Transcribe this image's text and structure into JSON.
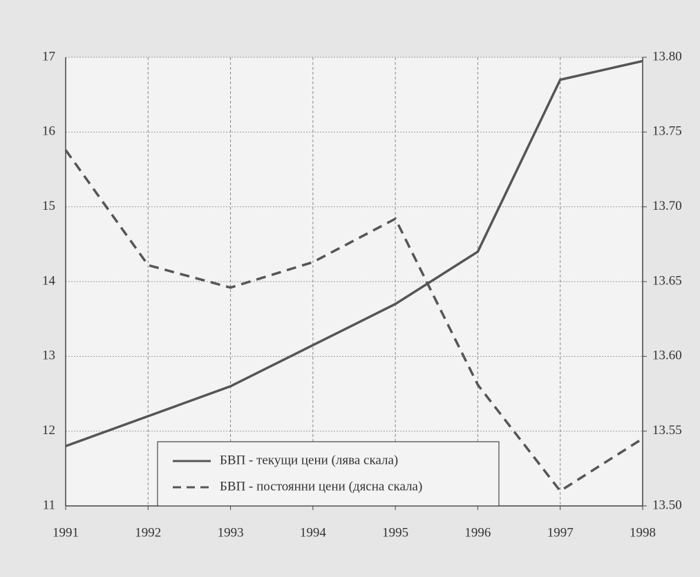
{
  "chart_data": {
    "type": "line",
    "categories": [
      "1991",
      "1992",
      "1993",
      "1994",
      "1995",
      "1996",
      "1997",
      "1998"
    ],
    "series": [
      {
        "name": "БВП - текущи цени (лява скала)",
        "color": "#555555",
        "dash": false,
        "values": [
          11.8,
          12.2,
          12.6,
          13.15,
          13.7,
          14.4,
          16.7,
          16.95
        ]
      },
      {
        "name": "БВП - постоянни цени (дясна скала)",
        "color": "#555555",
        "dash": true,
        "axis": "y2",
        "values": [
          13.738,
          13.661,
          13.646,
          13.663,
          13.692,
          13.581,
          13.51,
          13.545
        ]
      }
    ],
    "ylim": [
      11,
      17
    ],
    "yticks": [
      11,
      12,
      13,
      14,
      15,
      16,
      17
    ],
    "y2lim": [
      13.5,
      13.8
    ],
    "y2ticks": [
      {
        "value": 13.5,
        "label": "13.50"
      },
      13.55,
      {
        "value": 13.6,
        "label": "13.60"
      },
      13.65,
      {
        "value": 13.7,
        "label": "13.70"
      },
      13.75,
      {
        "value": 13.8,
        "label": "13.80"
      }
    ],
    "grid": true,
    "legend": "bottom-left"
  }
}
